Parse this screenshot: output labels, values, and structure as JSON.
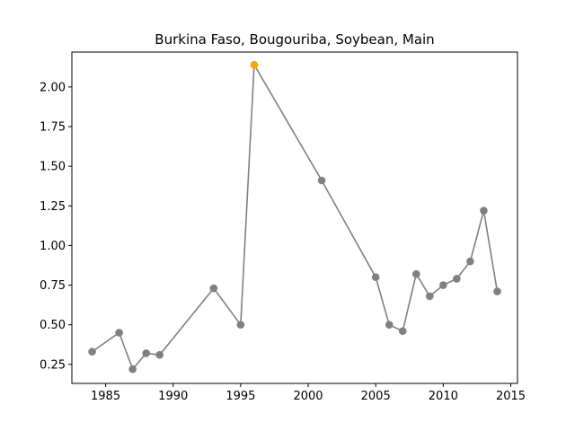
{
  "chart_data": {
    "type": "line",
    "title": "Burkina Faso, Bougouriba, Soybean, Main",
    "xlabel": "",
    "ylabel": "",
    "xlim": [
      1982.5,
      2015.5
    ],
    "ylim": [
      0.13,
      2.22
    ],
    "xticks": [
      1985,
      1990,
      1995,
      2000,
      2005,
      2010,
      2015
    ],
    "yticks": [
      0.25,
      0.5,
      0.75,
      1.0,
      1.25,
      1.5,
      1.75,
      2.0
    ],
    "ytick_labels": [
      "0.25",
      "0.50",
      "0.75",
      "1.00",
      "1.25",
      "1.50",
      "1.75",
      "2.00"
    ],
    "grid": false,
    "series": [
      {
        "color": "#808080",
        "highlight_color": "#ffa500",
        "points": [
          {
            "x": 1984,
            "y": 0.33
          },
          {
            "x": 1986,
            "y": 0.45
          },
          {
            "x": 1987,
            "y": 0.22
          },
          {
            "x": 1988,
            "y": 0.32
          },
          {
            "x": 1989,
            "y": 0.31
          },
          {
            "x": 1993,
            "y": 0.73
          },
          {
            "x": 1995,
            "y": 0.5
          },
          {
            "x": 1996,
            "y": 2.14,
            "highlight": true
          },
          {
            "x": 2001,
            "y": 1.41
          },
          {
            "x": 2005,
            "y": 0.8
          },
          {
            "x": 2006,
            "y": 0.5
          },
          {
            "x": 2007,
            "y": 0.46
          },
          {
            "x": 2008,
            "y": 0.82
          },
          {
            "x": 2009,
            "y": 0.68
          },
          {
            "x": 2010,
            "y": 0.75
          },
          {
            "x": 2011,
            "y": 0.79
          },
          {
            "x": 2012,
            "y": 0.9
          },
          {
            "x": 2013,
            "y": 1.22
          },
          {
            "x": 2014,
            "y": 0.71
          }
        ]
      }
    ]
  }
}
